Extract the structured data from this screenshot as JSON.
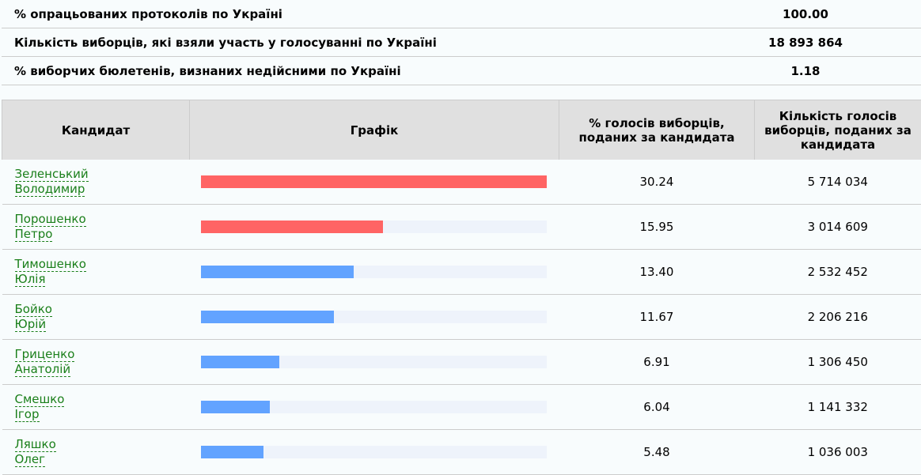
{
  "summary": [
    {
      "label": "% опрацьованих протоколів по Україні",
      "value": "100.00"
    },
    {
      "label": "Кількість виборців, які взяли участь у голосуванні по Україні",
      "value": "18 893 864"
    },
    {
      "label": "% виборчих бюлетенів, визнаних недійсними по Україні",
      "value": "1.18"
    }
  ],
  "headers": {
    "candidate": "Кандидат",
    "chart": "Графік",
    "percent": "% голосів виборців, поданих за кандидата",
    "votes": "Кількість голосів виборців, поданих за кандидата"
  },
  "colors": {
    "leading": "#ff6464",
    "other": "#62a3ff",
    "track": "#eef3fb"
  },
  "candidates": [
    {
      "surname": "Зеленський",
      "first": "Володимир",
      "percent": "30.24",
      "votes": "5 714 034",
      "bar": 30.24,
      "leading": true
    },
    {
      "surname": "Порошенко",
      "first": "Петро",
      "percent": "15.95",
      "votes": "3 014 609",
      "bar": 15.95,
      "leading": true
    },
    {
      "surname": "Тимошенко",
      "first": "Юлія",
      "percent": "13.40",
      "votes": "2 532 452",
      "bar": 13.4,
      "leading": false
    },
    {
      "surname": "Бойко",
      "first": "Юрій",
      "percent": "11.67",
      "votes": "2 206 216",
      "bar": 11.67,
      "leading": false
    },
    {
      "surname": "Гриценко",
      "first": "Анатолій",
      "percent": "6.91",
      "votes": "1 306 450",
      "bar": 6.91,
      "leading": false
    },
    {
      "surname": "Смешко",
      "first": "Ігор",
      "percent": "6.04",
      "votes": "1 141 332",
      "bar": 6.04,
      "leading": false
    },
    {
      "surname": "Ляшко",
      "first": "Олег",
      "percent": "5.48",
      "votes": "1 036 003",
      "bar": 5.48,
      "leading": false
    }
  ]
}
